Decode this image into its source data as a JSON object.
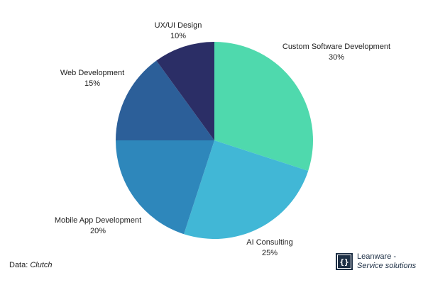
{
  "chart_data": {
    "type": "pie",
    "start_angle_deg": 0,
    "direction": "clockwise",
    "slices": [
      {
        "label": "Custom Software Development",
        "value": 30,
        "value_label": "30%",
        "color": "#4fd9ad"
      },
      {
        "label": "AI Consulting",
        "value": 25,
        "value_label": "25%",
        "color": "#41b7d6"
      },
      {
        "label": "Mobile App Development",
        "value": 20,
        "value_label": "20%",
        "color": "#2e87bb"
      },
      {
        "label": "Web Development",
        "value": 15,
        "value_label": "15%",
        "color": "#2c5f99"
      },
      {
        "label": "UX/UI Design",
        "value": 10,
        "value_label": "10%",
        "color": "#2b2e66"
      }
    ]
  },
  "footer": {
    "source_prefix": "Data:",
    "source_name": "Clutch"
  },
  "brand": {
    "logo_glyph": "{}",
    "name": "Leanware -",
    "tagline": "Service solutions"
  }
}
